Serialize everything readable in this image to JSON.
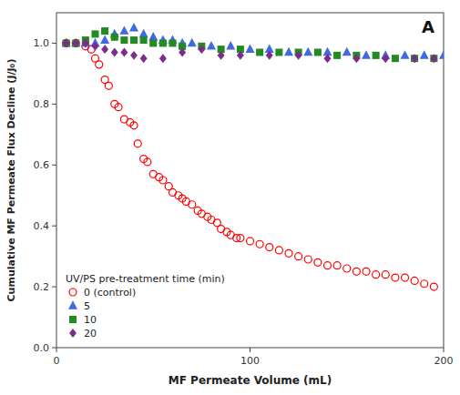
{
  "chart_data": {
    "type": "scatter",
    "annotations": [
      "A"
    ],
    "x_label": "MF Permeate Volume (mL)",
    "y_label": "Cumulative MF Permeate Flux Decline (J/J₀)",
    "xlim": [
      0,
      200
    ],
    "ylim": [
      0,
      1.1
    ],
    "xticks": [
      0,
      100,
      200
    ],
    "yticks": [
      {
        "value": 0,
        "label": "0.0"
      },
      0.2,
      0.4,
      0.6,
      0.8,
      {
        "value": 1,
        "label": "1.0"
      }
    ],
    "legend": "lower left",
    "legend_title": "UV/PS pre-treatment time (min)",
    "grid": false,
    "series": [
      {
        "name": "0 (control)",
        "color": "#FF0000",
        "marker": "open-circle",
        "x": [
          5,
          10,
          15,
          18,
          20,
          22,
          25,
          27,
          30,
          32,
          35,
          38,
          40,
          42,
          45,
          47,
          50,
          53,
          55,
          58,
          60,
          63,
          65,
          67,
          70,
          73,
          75,
          78,
          80,
          83,
          85,
          88,
          90,
          93,
          95,
          100,
          105,
          110,
          115,
          120,
          125,
          130,
          135,
          140,
          145,
          150,
          155,
          160,
          165,
          170,
          175,
          180,
          185,
          190,
          195
        ],
        "values": [
          1.0,
          1.0,
          0.99,
          0.98,
          0.95,
          0.93,
          0.88,
          0.86,
          0.8,
          0.79,
          0.75,
          0.74,
          0.73,
          0.67,
          0.62,
          0.61,
          0.57,
          0.56,
          0.55,
          0.53,
          0.51,
          0.5,
          0.49,
          0.48,
          0.47,
          0.45,
          0.44,
          0.43,
          0.42,
          0.41,
          0.39,
          0.38,
          0.37,
          0.36,
          0.36,
          0.35,
          0.34,
          0.33,
          0.32,
          0.31,
          0.3,
          0.29,
          0.28,
          0.27,
          0.27,
          0.26,
          0.25,
          0.25,
          0.24,
          0.24,
          0.23,
          0.23,
          0.22,
          0.21,
          0.2
        ]
      },
      {
        "name": "5",
        "color": "#4169E1",
        "marker": "triangle",
        "x": [
          5,
          10,
          15,
          20,
          25,
          30,
          35,
          40,
          45,
          50,
          55,
          60,
          65,
          70,
          80,
          90,
          100,
          110,
          120,
          130,
          140,
          150,
          160,
          170,
          180,
          190,
          200
        ],
        "values": [
          1.0,
          1.0,
          1.0,
          1.0,
          1.01,
          1.03,
          1.04,
          1.05,
          1.03,
          1.02,
          1.01,
          1.01,
          1.0,
          1.0,
          0.99,
          0.99,
          0.98,
          0.98,
          0.97,
          0.97,
          0.97,
          0.97,
          0.96,
          0.96,
          0.96,
          0.96,
          0.96
        ]
      },
      {
        "name": "10",
        "color": "#228B22",
        "marker": "square",
        "x": [
          5,
          10,
          15,
          20,
          25,
          30,
          35,
          40,
          45,
          50,
          55,
          60,
          65,
          75,
          85,
          95,
          105,
          115,
          125,
          135,
          145,
          155,
          165,
          175,
          185,
          195
        ],
        "values": [
          1.0,
          1.0,
          1.01,
          1.03,
          1.04,
          1.02,
          1.01,
          1.01,
          1.01,
          1.0,
          1.0,
          1.0,
          0.99,
          0.99,
          0.98,
          0.98,
          0.97,
          0.97,
          0.97,
          0.97,
          0.96,
          0.96,
          0.96,
          0.95,
          0.95,
          0.95
        ]
      },
      {
        "name": "20",
        "color": "#7B2D8B",
        "marker": "diamond",
        "x": [
          5,
          10,
          15,
          20,
          25,
          30,
          35,
          40,
          45,
          55,
          65,
          75,
          85,
          95,
          110,
          125,
          140,
          155,
          170,
          185,
          195
        ],
        "values": [
          1.0,
          1.0,
          1.0,
          0.99,
          0.98,
          0.97,
          0.97,
          0.96,
          0.95,
          0.95,
          0.97,
          0.98,
          0.96,
          0.96,
          0.96,
          0.96,
          0.95,
          0.95,
          0.95,
          0.95,
          0.95
        ]
      }
    ]
  }
}
